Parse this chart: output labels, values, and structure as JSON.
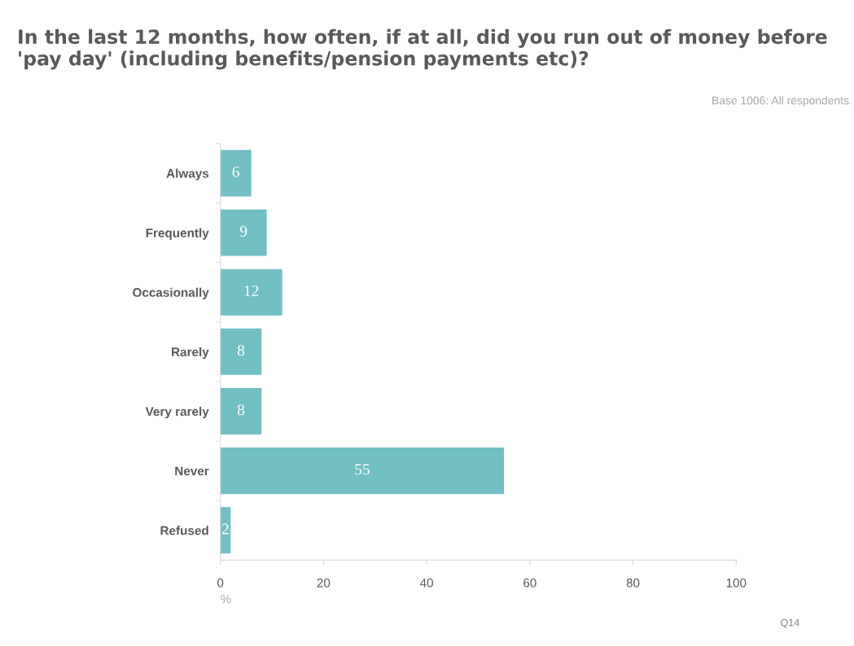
{
  "chart_data": {
    "type": "bar",
    "orientation": "horizontal",
    "title": "In the last 12 months, how often, if at all, did you run out of money before 'pay day' (including benefits/pension payments etc)?",
    "categories": [
      "Always",
      "Frequently",
      "Occasionally",
      "Rarely",
      "Very rarely",
      "Never",
      "Refused"
    ],
    "values": [
      6,
      9,
      12,
      8,
      8,
      55,
      2
    ],
    "color": "#72bfc4",
    "xlabel": "%",
    "xlim": [
      0,
      100
    ],
    "xticks": [
      0,
      20,
      40,
      60,
      80,
      100
    ],
    "data_labels": true,
    "grid": false,
    "legend": false,
    "annotations": [
      "Base 1006: All respondents.",
      "Q14"
    ]
  }
}
